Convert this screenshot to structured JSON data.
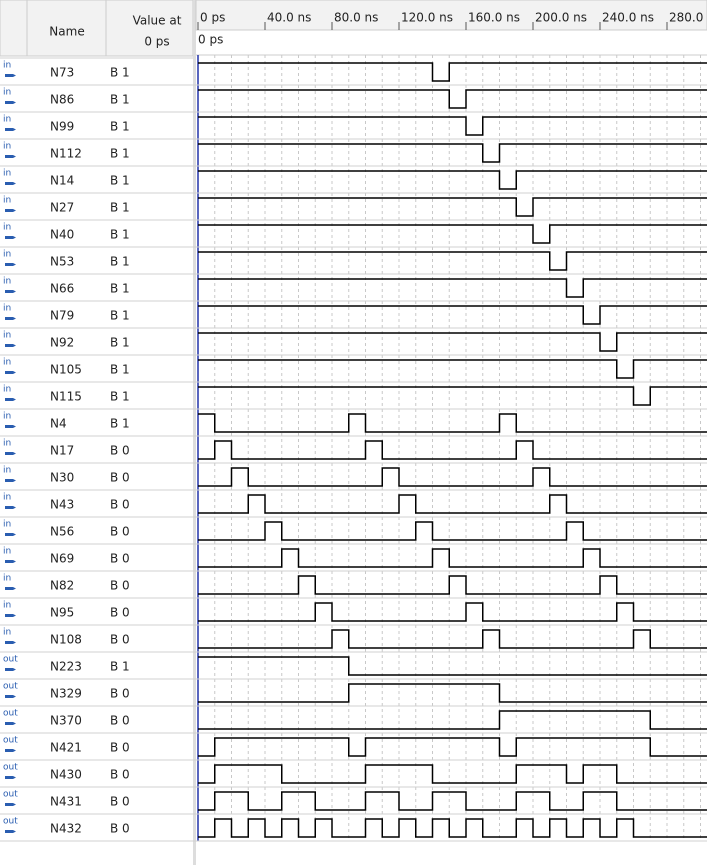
{
  "header": {
    "name": "Name",
    "value_at": "Value at",
    "value_time": "0 ps"
  },
  "timeline": {
    "ticks": [
      {
        "value": 0,
        "label": "0 ps"
      },
      {
        "value": 40,
        "label": "40.0 ns"
      },
      {
        "value": 80,
        "label": "80.0 ns"
      },
      {
        "value": 120,
        "label": "120.0 ns"
      },
      {
        "value": 160,
        "label": "160.0 ns"
      },
      {
        "value": 200,
        "label": "200.0 ns"
      },
      {
        "value": 240,
        "label": "240.0 ns"
      },
      {
        "value": 280,
        "label": "280.0 ns"
      }
    ],
    "cursor": {
      "value": 0,
      "label": "0 ps"
    }
  },
  "signals": [
    {
      "dir": "in",
      "name": "N73",
      "value": "B 1",
      "times": [
        0,
        140,
        150
      ],
      "levels": [
        1,
        0,
        1
      ]
    },
    {
      "dir": "in",
      "name": "N86",
      "value": "B 1",
      "times": [
        0,
        150,
        160
      ],
      "levels": [
        1,
        0,
        1
      ]
    },
    {
      "dir": "in",
      "name": "N99",
      "value": "B 1",
      "times": [
        0,
        160,
        170
      ],
      "levels": [
        1,
        0,
        1
      ]
    },
    {
      "dir": "in",
      "name": "N112",
      "value": "B 1",
      "times": [
        0,
        170,
        180
      ],
      "levels": [
        1,
        0,
        1
      ]
    },
    {
      "dir": "in",
      "name": "N14",
      "value": "B 1",
      "times": [
        0,
        180,
        190
      ],
      "levels": [
        1,
        0,
        1
      ]
    },
    {
      "dir": "in",
      "name": "N27",
      "value": "B 1",
      "times": [
        0,
        190,
        200
      ],
      "levels": [
        1,
        0,
        1
      ]
    },
    {
      "dir": "in",
      "name": "N40",
      "value": "B 1",
      "times": [
        0,
        200,
        210
      ],
      "levels": [
        1,
        0,
        1
      ]
    },
    {
      "dir": "in",
      "name": "N53",
      "value": "B 1",
      "times": [
        0,
        210,
        220
      ],
      "levels": [
        1,
        0,
        1
      ]
    },
    {
      "dir": "in",
      "name": "N66",
      "value": "B 1",
      "times": [
        0,
        220,
        230
      ],
      "levels": [
        1,
        0,
        1
      ]
    },
    {
      "dir": "in",
      "name": "N79",
      "value": "B 1",
      "times": [
        0,
        230,
        240
      ],
      "levels": [
        1,
        0,
        1
      ]
    },
    {
      "dir": "in",
      "name": "N92",
      "value": "B 1",
      "times": [
        0,
        240,
        250
      ],
      "levels": [
        1,
        0,
        1
      ]
    },
    {
      "dir": "in",
      "name": "N105",
      "value": "B 1",
      "times": [
        0,
        250,
        260
      ],
      "levels": [
        1,
        0,
        1
      ]
    },
    {
      "dir": "in",
      "name": "N115",
      "value": "B 1",
      "times": [
        0,
        260,
        270
      ],
      "levels": [
        1,
        0,
        1
      ]
    },
    {
      "dir": "in",
      "name": "N4",
      "value": "B 1",
      "times": [
        0,
        10,
        90,
        100,
        180,
        190
      ],
      "levels": [
        1,
        0,
        1,
        0,
        1,
        0
      ]
    },
    {
      "dir": "in",
      "name": "N17",
      "value": "B 0",
      "times": [
        0,
        10,
        20,
        100,
        110,
        190,
        200
      ],
      "levels": [
        0,
        1,
        0,
        1,
        0,
        1,
        0
      ]
    },
    {
      "dir": "in",
      "name": "N30",
      "value": "B 0",
      "times": [
        0,
        20,
        30,
        110,
        120,
        200,
        210
      ],
      "levels": [
        0,
        1,
        0,
        1,
        0,
        1,
        0
      ]
    },
    {
      "dir": "in",
      "name": "N43",
      "value": "B 0",
      "times": [
        0,
        30,
        40,
        120,
        130,
        210,
        220
      ],
      "levels": [
        0,
        1,
        0,
        1,
        0,
        1,
        0
      ]
    },
    {
      "dir": "in",
      "name": "N56",
      "value": "B 0",
      "times": [
        0,
        40,
        50,
        130,
        140,
        220,
        230
      ],
      "levels": [
        0,
        1,
        0,
        1,
        0,
        1,
        0
      ]
    },
    {
      "dir": "in",
      "name": "N69",
      "value": "B 0",
      "times": [
        0,
        50,
        60,
        140,
        150,
        230,
        240
      ],
      "levels": [
        0,
        1,
        0,
        1,
        0,
        1,
        0
      ]
    },
    {
      "dir": "in",
      "name": "N82",
      "value": "B 0",
      "times": [
        0,
        60,
        70,
        150,
        160,
        240,
        250
      ],
      "levels": [
        0,
        1,
        0,
        1,
        0,
        1,
        0
      ]
    },
    {
      "dir": "in",
      "name": "N95",
      "value": "B 0",
      "times": [
        0,
        70,
        80,
        160,
        170,
        250,
        260
      ],
      "levels": [
        0,
        1,
        0,
        1,
        0,
        1,
        0
      ]
    },
    {
      "dir": "in",
      "name": "N108",
      "value": "B 0",
      "times": [
        0,
        80,
        90,
        170,
        180,
        260,
        270
      ],
      "levels": [
        0,
        1,
        0,
        1,
        0,
        1,
        0
      ]
    },
    {
      "dir": "out",
      "name": "N223",
      "value": "B 1",
      "times": [
        0,
        90
      ],
      "levels": [
        1,
        0
      ]
    },
    {
      "dir": "out",
      "name": "N329",
      "value": "B 0",
      "times": [
        0,
        90,
        180
      ],
      "levels": [
        0,
        1,
        0
      ]
    },
    {
      "dir": "out",
      "name": "N370",
      "value": "B 0",
      "times": [
        0,
        180,
        270
      ],
      "levels": [
        0,
        1,
        0
      ]
    },
    {
      "dir": "out",
      "name": "N421",
      "value": "B 0",
      "times": [
        0,
        10,
        90,
        100,
        180,
        190,
        270
      ],
      "levels": [
        0,
        1,
        0,
        1,
        0,
        1,
        0
      ]
    },
    {
      "dir": "out",
      "name": "N430",
      "value": "B 0",
      "times": [
        0,
        10,
        50,
        100,
        140,
        190,
        220,
        230,
        250
      ],
      "levels": [
        0,
        1,
        0,
        1,
        0,
        1,
        0,
        1,
        0
      ]
    },
    {
      "dir": "out",
      "name": "N431",
      "value": "B 0",
      "times": [
        0,
        10,
        30,
        50,
        70,
        100,
        120,
        140,
        160,
        190,
        210,
        230,
        250
      ],
      "levels": [
        0,
        1,
        0,
        1,
        0,
        1,
        0,
        1,
        0,
        1,
        0,
        1,
        0
      ]
    },
    {
      "dir": "out",
      "name": "N432",
      "value": "B 0",
      "times": [
        0,
        10,
        20,
        30,
        40,
        50,
        60,
        70,
        80,
        100,
        110,
        120,
        130,
        140,
        150,
        160,
        170,
        190,
        200,
        210,
        220,
        230,
        240,
        250,
        260
      ],
      "levels": [
        0,
        1,
        0,
        1,
        0,
        1,
        0,
        1,
        0,
        1,
        0,
        1,
        0,
        1,
        0,
        1,
        0,
        1,
        0,
        1,
        0,
        1,
        0,
        1,
        0
      ]
    }
  ]
}
